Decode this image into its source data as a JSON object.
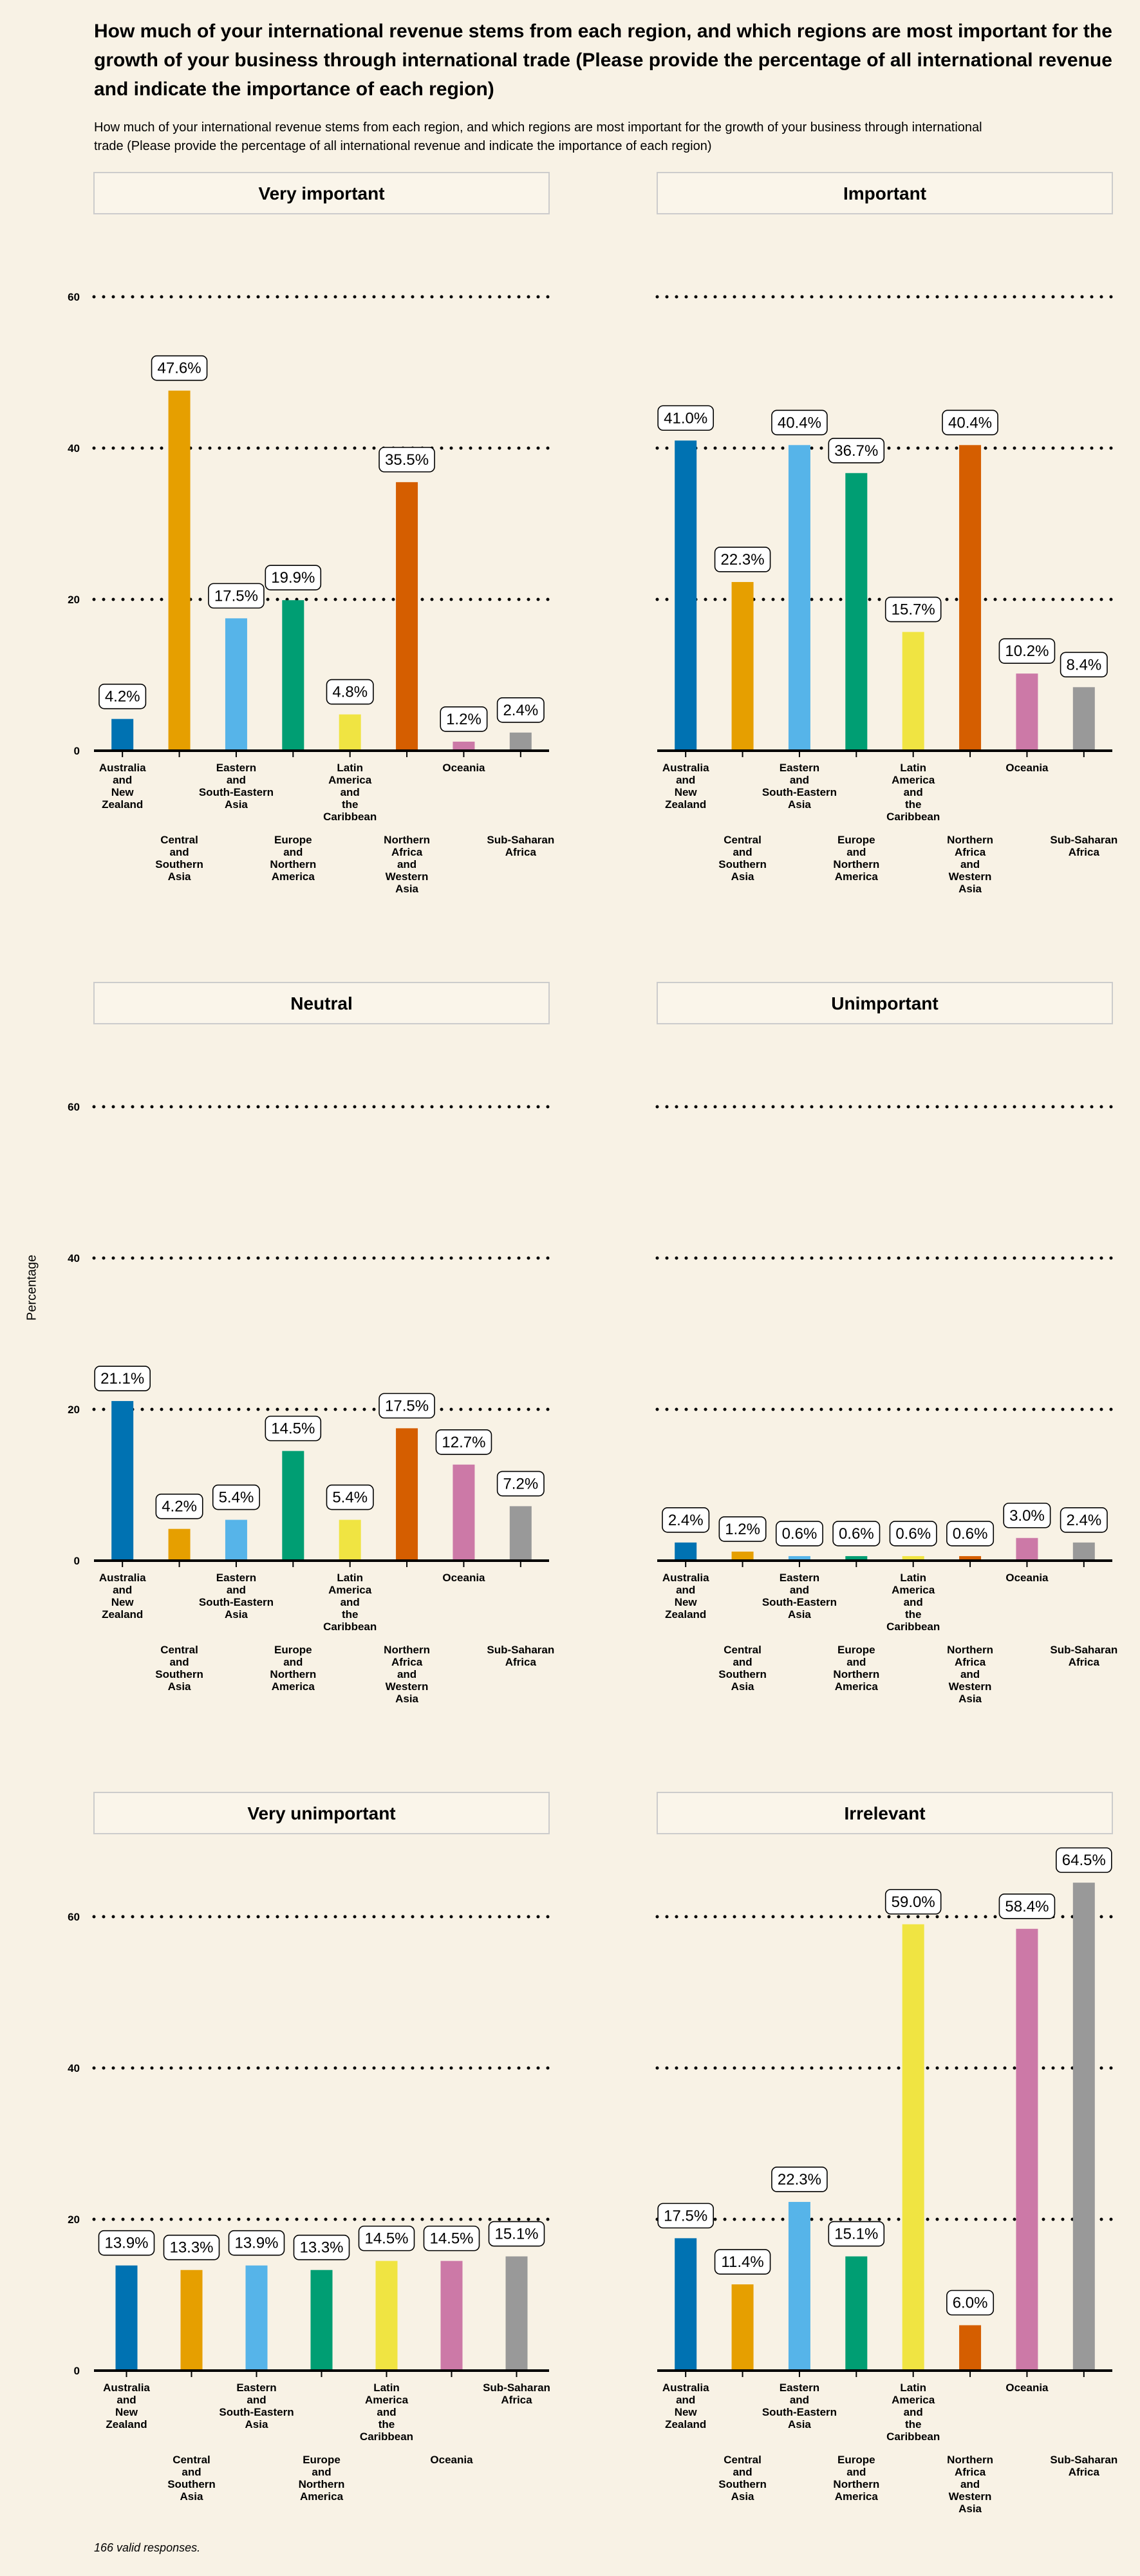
{
  "title": "How much of your international revenue stems from each region, and which regions are most important for the growth of your business through international trade (Please provide the percentage of all international revenue and indicate the importance of each region)",
  "subtitle": "How much of your international revenue stems from each region, and which regions are most important for the growth of your business through international trade (Please provide the percentage of all international revenue and indicate the importance of each region)",
  "ylabel": "Percentage",
  "footnote": "166 valid responses.",
  "colors": [
    "#0072b2",
    "#e69f00",
    "#56b4e9",
    "#009e73",
    "#f0e442",
    "#d55e00",
    "#cc79a7",
    "#999999"
  ],
  "chart_data": {
    "type": "bar",
    "facet": "importance",
    "ylim": [
      0,
      70
    ],
    "yticks": [
      0,
      20,
      40,
      60
    ],
    "grid": "horizontal dotted",
    "categories": [
      "Australia and New Zealand",
      "Central and Southern Asia",
      "Eastern and South-Eastern Asia",
      "Europe and Northern America",
      "Latin America and the Caribbean",
      "Northern Africa and Western Asia",
      "Oceania",
      "Sub-Saharan Africa"
    ],
    "category_lines": [
      [
        "Australia",
        "and",
        "New",
        "Zealand"
      ],
      [
        "Central",
        "and",
        "Southern",
        "Asia"
      ],
      [
        "Eastern",
        "and",
        "South-Eastern",
        "Asia"
      ],
      [
        "Europe",
        "and",
        "Northern",
        "America"
      ],
      [
        "Latin",
        "America",
        "and",
        "the",
        "Caribbean"
      ],
      [
        "Northern",
        "Africa",
        "and",
        "Western",
        "Asia"
      ],
      [
        "Oceania"
      ],
      [
        "Sub-Saharan",
        "Africa"
      ]
    ],
    "panels": [
      {
        "name": "Very important",
        "categories": [
          "Australia and New Zealand",
          "Central and Southern Asia",
          "Eastern and South-Eastern Asia",
          "Europe and Northern America",
          "Latin America and the Caribbean",
          "Northern Africa and Western Asia",
          "Oceania",
          "Sub-Saharan Africa"
        ],
        "values": [
          4.2,
          47.6,
          17.5,
          19.9,
          4.8,
          35.5,
          1.2,
          2.4
        ],
        "labels": [
          "4.2%",
          "47.6%",
          "17.5%",
          "19.9%",
          "4.8%",
          "35.5%",
          "1.2%",
          "2.4%"
        ]
      },
      {
        "name": "Important",
        "categories": [
          "Australia and New Zealand",
          "Central and Southern Asia",
          "Eastern and South-Eastern Asia",
          "Europe and Northern America",
          "Latin America and the Caribbean",
          "Northern Africa and Western Asia",
          "Oceania",
          "Sub-Saharan Africa"
        ],
        "values": [
          41.0,
          22.3,
          40.4,
          36.7,
          15.7,
          40.4,
          10.2,
          8.4
        ],
        "labels": [
          "41.0%",
          "22.3%",
          "40.4%",
          "36.7%",
          "15.7%",
          "40.4%",
          "10.2%",
          "8.4%"
        ]
      },
      {
        "name": "Neutral",
        "categories": [
          "Australia and New Zealand",
          "Central and Southern Asia",
          "Eastern and South-Eastern Asia",
          "Europe and Northern America",
          "Latin America and the Caribbean",
          "Northern Africa and Western Asia",
          "Oceania",
          "Sub-Saharan Africa"
        ],
        "values": [
          21.1,
          4.2,
          5.4,
          14.5,
          5.4,
          17.5,
          12.7,
          7.2
        ],
        "labels": [
          "21.1%",
          "4.2%",
          "5.4%",
          "14.5%",
          "5.4%",
          "17.5%",
          "12.7%",
          "7.2%"
        ]
      },
      {
        "name": "Unimportant",
        "categories": [
          "Australia and New Zealand",
          "Central and Southern Asia",
          "Eastern and South-Eastern Asia",
          "Europe and Northern America",
          "Latin America and the Caribbean",
          "Northern Africa and Western Asia",
          "Oceania",
          "Sub-Saharan Africa"
        ],
        "values": [
          2.4,
          1.2,
          0.6,
          0.6,
          0.6,
          0.6,
          3.0,
          2.4
        ],
        "labels": [
          "2.4%",
          "1.2%",
          "0.6%",
          "0.6%",
          "0.6%",
          "0.6%",
          "3.0%",
          "2.4%"
        ]
      },
      {
        "name": "Very unimportant",
        "categories": [
          "Australia and New Zealand",
          "Central and Southern Asia",
          "Eastern and South-Eastern Asia",
          "Europe and Northern America",
          "Latin America and the Caribbean",
          "Oceania",
          "Sub-Saharan Africa"
        ],
        "values": [
          13.9,
          13.3,
          13.9,
          13.3,
          14.5,
          14.5,
          15.1
        ],
        "labels": [
          "13.9%",
          "13.3%",
          "13.9%",
          "13.3%",
          "14.5%",
          "14.5%",
          "15.1%"
        ]
      },
      {
        "name": "Irrelevant",
        "categories": [
          "Australia and New Zealand",
          "Central and Southern Asia",
          "Eastern and South-Eastern Asia",
          "Europe and Northern America",
          "Latin America and the Caribbean",
          "Northern Africa and Western Asia",
          "Oceania",
          "Sub-Saharan Africa"
        ],
        "values": [
          17.5,
          11.4,
          22.3,
          15.1,
          59.0,
          6.0,
          58.4,
          64.5
        ],
        "labels": [
          "17.5%",
          "11.4%",
          "22.3%",
          "15.1%",
          "59.0%",
          "6.0%",
          "58.4%",
          "64.5%"
        ]
      }
    ]
  }
}
